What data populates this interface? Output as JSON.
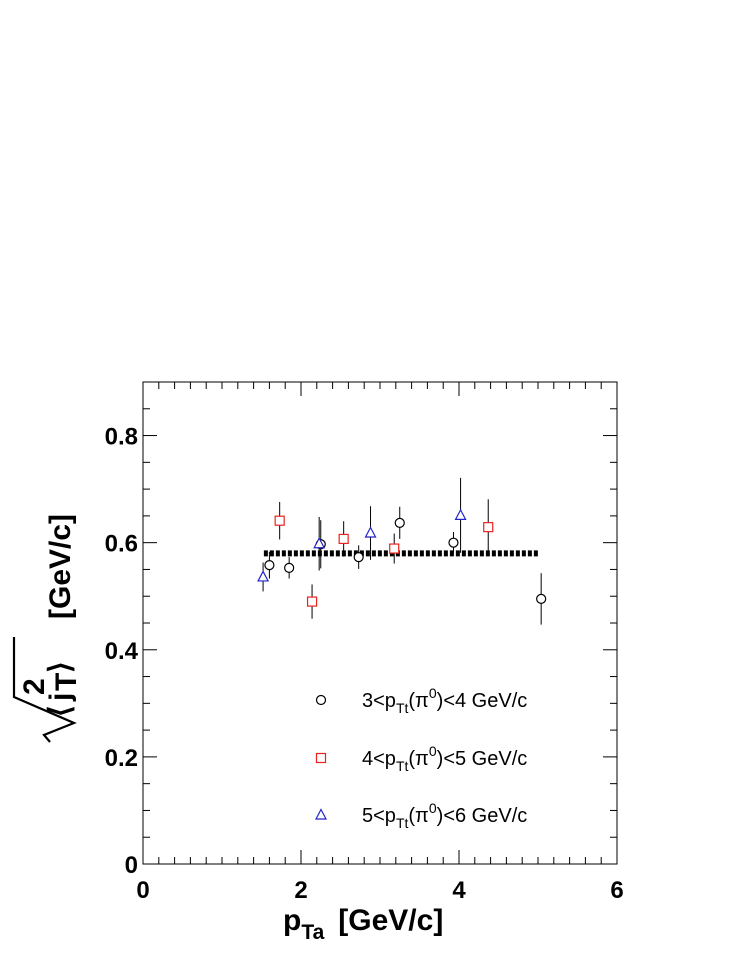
{
  "chart_data": {
    "type": "scatter",
    "title": "",
    "xlabel": {
      "main": "p",
      "sub": "Ta",
      "unit": "[GeV/c]"
    },
    "ylabel": {
      "main": "j",
      "sup": "2",
      "sub": "T",
      "unit": "[GeV/c]"
    },
    "xlim": [
      0,
      6
    ],
    "ylim": [
      0,
      0.9
    ],
    "x_ticks": [
      "0",
      "2",
      "4",
      "6"
    ],
    "y_ticks": [
      "0",
      "0.2",
      "0.4",
      "0.6",
      "0.8"
    ],
    "grid": false,
    "legend_position": "bottom-right",
    "series": [
      {
        "legend": {
          "pre": "3<p",
          "sub": "Tt",
          "mid": "(π",
          "sup": "0",
          "post": ")<4 GeV/c"
        },
        "marker": "circle",
        "color": "#000000",
        "x": [
          1.6,
          1.85,
          2.25,
          2.73,
          3.25,
          3.93,
          5.04
        ],
        "y": [
          0.558,
          0.553,
          0.597,
          0.573,
          0.637,
          0.6,
          0.495
        ],
        "err": [
          0.025,
          0.02,
          0.045,
          0.022,
          0.03,
          0.02,
          0.048
        ]
      },
      {
        "legend": {
          "pre": "4<p",
          "sub": "Tt",
          "mid": "(π",
          "sup": "0",
          "post": ")<5 GeV/c"
        },
        "marker": "square",
        "color": "#e8231f",
        "x": [
          1.73,
          2.14,
          2.54,
          3.18,
          4.37
        ],
        "y": [
          0.641,
          0.49,
          0.607,
          0.589,
          0.629
        ],
        "err": [
          0.035,
          0.032,
          0.033,
          0.028,
          0.052
        ]
      },
      {
        "legend": {
          "pre": "5<p",
          "sub": "Tt",
          "mid": "(π",
          "sup": "0",
          "post": ")<6 GeV/c"
        },
        "marker": "triangle",
        "color": "#2323c8",
        "x": [
          1.52,
          2.23,
          2.88,
          4.02
        ],
        "y": [
          0.536,
          0.598,
          0.618,
          0.651
        ],
        "err": [
          0.027,
          0.05,
          0.05,
          0.07
        ]
      }
    ],
    "fit_line": {
      "x": [
        1.53,
        5.0
      ],
      "y": 0.58,
      "style": "dotted",
      "color": "#000000"
    }
  }
}
